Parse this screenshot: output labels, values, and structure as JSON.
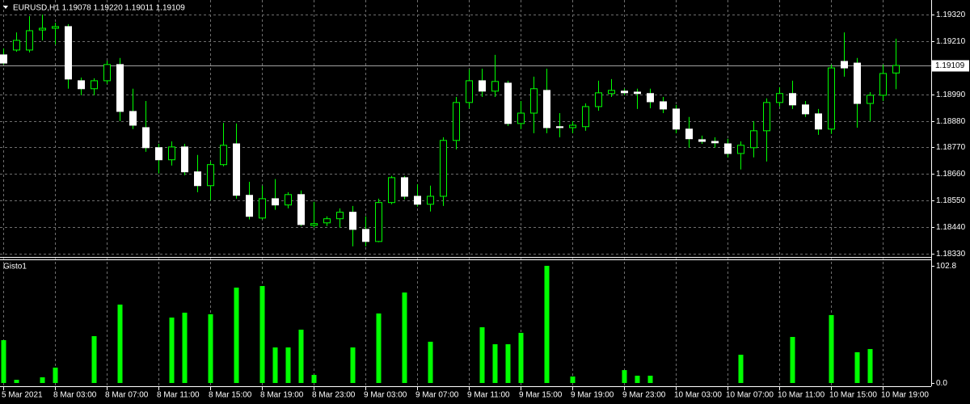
{
  "chart_data": [
    {
      "type": "candlestick",
      "title": "EURUSD,H1  1.19078 1.19220 1.19011 1.19109",
      "categories": [
        "5 Mar 2021",
        null,
        null,
        null,
        "8 Mar 03:00",
        null,
        null,
        null,
        "8 Mar 07:00",
        null,
        null,
        null,
        "8 Mar 11:00",
        null,
        null,
        null,
        "8 Mar 15:00",
        null,
        null,
        null,
        "8 Mar 19:00",
        null,
        null,
        null,
        "8 Mar 23:00",
        null,
        null,
        null,
        "9 Mar 03:00",
        null,
        null,
        null,
        "9 Mar 07:00",
        null,
        null,
        null,
        "9 Mar 11:00",
        null,
        null,
        null,
        "9 Mar 15:00",
        null,
        null,
        null,
        "9 Mar 19:00",
        null,
        null,
        null,
        "9 Mar 23:00",
        null,
        null,
        null,
        "10 Mar 03:00",
        null,
        null,
        null,
        "10 Mar 07:00",
        null,
        null,
        null,
        "10 Mar 11:00",
        null,
        null,
        null,
        "10 Mar 15:00",
        null,
        null,
        null,
        "10 Mar 19:00",
        null
      ],
      "open": [
        1.19153,
        1.19173,
        1.19173,
        1.19256,
        1.19263,
        1.1927,
        1.19046,
        1.19013,
        1.19046,
        1.19113,
        1.18919,
        1.18852,
        1.18769,
        1.18719,
        1.18772,
        1.18669,
        1.18612,
        1.18699,
        1.18785,
        1.18572,
        1.18478,
        1.18558,
        1.18532,
        1.18575,
        1.18448,
        1.18458,
        1.18475,
        1.18502,
        1.18431,
        1.18381,
        1.18542,
        1.18645,
        1.18568,
        1.18535,
        1.18568,
        1.18799,
        1.18956,
        1.19046,
        1.19003,
        1.19036,
        1.18869,
        1.18912,
        1.19006,
        1.18856,
        1.18852,
        1.18856,
        1.18939,
        1.18993,
        1.19003,
        1.18999,
        1.18993,
        1.18959,
        1.18929,
        1.18846,
        1.18802,
        1.18795,
        1.18785,
        1.18745,
        1.18769,
        1.18839,
        1.18956,
        1.18993,
        1.18946,
        1.18909,
        1.18846,
        1.19126,
        1.19119,
        1.18952,
        1.18986,
        1.19078
      ],
      "high": [
        1.1918,
        1.19246,
        1.19313,
        1.1932,
        1.19286,
        1.1928,
        1.19059,
        1.19056,
        1.19129,
        1.1914,
        1.19013,
        1.18962,
        1.18785,
        1.18795,
        1.18785,
        1.18739,
        1.18712,
        1.18872,
        1.18869,
        1.18628,
        1.18612,
        1.18639,
        1.18585,
        1.18592,
        1.18545,
        1.18485,
        1.18518,
        1.18528,
        1.18485,
        1.18558,
        1.18652,
        1.18652,
        1.18618,
        1.18612,
        1.18812,
        1.18979,
        1.19093,
        1.19096,
        1.19153,
        1.19046,
        1.18962,
        1.19063,
        1.19096,
        1.18912,
        1.18879,
        1.18952,
        1.19046,
        1.19053,
        1.19013,
        1.19013,
        1.19013,
        1.18979,
        1.18946,
        1.18896,
        1.18819,
        1.18812,
        1.18806,
        1.18795,
        1.18879,
        1.18973,
        1.19019,
        1.19046,
        1.18962,
        1.18929,
        1.19113,
        1.19246,
        1.1914,
        1.18999,
        1.19113,
        1.1922
      ],
      "low": [
        1.19113,
        1.19166,
        1.19163,
        1.19213,
        1.19196,
        1.19013,
        1.18986,
        1.18986,
        1.19033,
        1.18879,
        1.18846,
        1.18752,
        1.18662,
        1.18695,
        1.18655,
        1.18585,
        1.18552,
        1.18692,
        1.18558,
        1.18472,
        1.18472,
        1.18512,
        1.18518,
        1.18445,
        1.18438,
        1.18445,
        1.18438,
        1.18361,
        1.18361,
        1.18378,
        1.18535,
        1.18555,
        1.18525,
        1.18505,
        1.18528,
        1.18762,
        1.18932,
        1.18979,
        1.18979,
        1.18859,
        1.18846,
        1.18829,
        1.18829,
        1.18812,
        1.18829,
        1.18839,
        1.18922,
        1.18979,
        1.18986,
        1.18929,
        1.18932,
        1.18912,
        1.18829,
        1.18769,
        1.18785,
        1.18769,
        1.18729,
        1.18679,
        1.18729,
        1.18712,
        1.18939,
        1.18929,
        1.18896,
        1.18822,
        1.18826,
        1.19063,
        1.18852,
        1.18879,
        1.18962,
        1.19011
      ],
      "close": [
        1.19119,
        1.19213,
        1.19253,
        1.19263,
        1.1927,
        1.19053,
        1.19013,
        1.19046,
        1.19113,
        1.18919,
        1.18862,
        1.18769,
        1.18719,
        1.18772,
        1.18669,
        1.18612,
        1.18699,
        1.18779,
        1.18572,
        1.18485,
        1.18558,
        1.18532,
        1.18575,
        1.18451,
        1.18455,
        1.18475,
        1.18502,
        1.18431,
        1.18381,
        1.18542,
        1.18645,
        1.18568,
        1.18535,
        1.18568,
        1.18799,
        1.18956,
        1.19046,
        1.19003,
        1.19043,
        1.18869,
        1.18912,
        1.19013,
        1.18852,
        1.18852,
        1.18862,
        1.18939,
        1.18996,
        1.19006,
        1.18996,
        1.18993,
        1.18959,
        1.18929,
        1.18846,
        1.18806,
        1.18795,
        1.18789,
        1.18745,
        1.18779,
        1.18839,
        1.18956,
        1.18993,
        1.18946,
        1.18909,
        1.18846,
        1.19099,
        1.19099,
        1.18952,
        1.18986,
        1.19076,
        1.19109
      ],
      "up_color": "#00ff00",
      "down_color": "#ffffff",
      "wick_color": "#00ff00",
      "ylim": [
        1.18317,
        1.1938
      ],
      "yticks": [
        {
          "value": 1.1932,
          "label": "1.19320"
        },
        {
          "value": 1.1921,
          "label": "1.19210"
        },
        {
          "value": 1.1899,
          "label": "1.18990"
        },
        {
          "value": 1.1888,
          "label": "1.18880"
        },
        {
          "value": 1.1877,
          "label": "1.18770"
        },
        {
          "value": 1.1866,
          "label": "1.18660"
        },
        {
          "value": 1.1855,
          "label": "1.18550"
        },
        {
          "value": 1.1844,
          "label": "1.18440"
        },
        {
          "value": 1.1833,
          "label": "1.18330"
        }
      ],
      "last_price": 1.19109,
      "grid": true
    },
    {
      "type": "bar",
      "title": "Gisto1",
      "values": [
        37.6,
        2.8,
        0,
        5.0,
        13.5,
        0,
        0,
        41.1,
        0,
        68.8,
        0,
        0,
        0,
        57.4,
        61.7,
        0,
        60.3,
        0,
        83.7,
        0,
        85.1,
        31.2,
        31.2,
        46.8,
        7.1,
        0,
        0,
        31.2,
        0,
        61.0,
        0,
        79.4,
        0,
        36.2,
        0,
        0,
        0,
        48.9,
        34.0,
        34.0,
        44.0,
        0,
        102.8,
        0,
        5.7,
        0,
        0,
        0,
        11.3,
        6.4,
        6.4,
        0,
        0,
        0,
        0,
        0,
        0,
        24.8,
        0,
        0,
        0,
        40.4,
        0,
        0,
        59.6,
        0,
        27.0,
        29.8,
        0,
        0
      ],
      "color": "#00ff00",
      "ylim": [
        0,
        102.8
      ],
      "yticks": [
        {
          "value": 102.8,
          "label": "102.8"
        },
        {
          "value": 0,
          "label": "0.0"
        }
      ],
      "grid": true
    }
  ]
}
